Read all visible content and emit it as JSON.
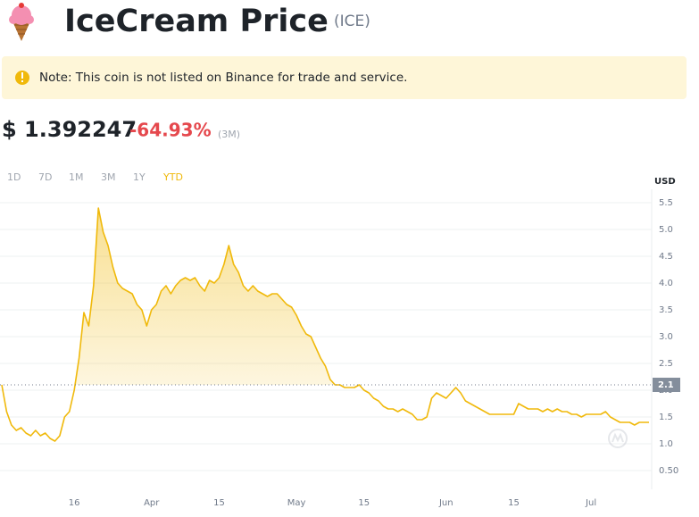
{
  "header": {
    "title": "IceCream Price",
    "symbol": "(ICE)"
  },
  "note": "Note: This coin is not listed on Binance for trade and service.",
  "price": {
    "value": "$ 1.392247",
    "change": "-64.93%",
    "period": "(3M)"
  },
  "tabs": [
    "1D",
    "7D",
    "1M",
    "3M",
    "1Y",
    "YTD"
  ],
  "active_tab": "YTD",
  "chart_data": {
    "type": "line",
    "y_axis_label": "USD",
    "series": [
      {
        "name": "ICE",
        "color": "#f0b90b",
        "values": [
          2.1,
          1.6,
          1.35,
          1.25,
          1.3,
          1.2,
          1.15,
          1.25,
          1.15,
          1.2,
          1.1,
          1.05,
          1.15,
          1.5,
          1.6,
          2.0,
          2.6,
          3.45,
          3.2,
          3.95,
          5.4,
          4.95,
          4.7,
          4.3,
          4.0,
          3.9,
          3.85,
          3.8,
          3.6,
          3.5,
          3.2,
          3.5,
          3.6,
          3.85,
          3.95,
          3.8,
          3.95,
          4.05,
          4.1,
          4.05,
          4.1,
          3.95,
          3.85,
          4.05,
          4.0,
          4.1,
          4.35,
          4.7,
          4.35,
          4.2,
          3.95,
          3.85,
          3.95,
          3.85,
          3.8,
          3.75,
          3.8,
          3.8,
          3.7,
          3.6,
          3.55,
          3.4,
          3.2,
          3.05,
          3.0,
          2.8,
          2.6,
          2.45,
          2.2,
          2.1,
          2.1,
          2.05,
          2.05,
          2.05,
          2.1,
          2.0,
          1.95,
          1.85,
          1.8,
          1.7,
          1.65,
          1.65,
          1.6,
          1.65,
          1.6,
          1.55,
          1.45,
          1.45,
          1.5,
          1.85,
          1.95,
          1.9,
          1.85,
          1.95,
          2.05,
          1.95,
          1.8,
          1.75,
          1.7,
          1.65,
          1.6,
          1.55,
          1.55,
          1.55,
          1.55,
          1.55,
          1.55,
          1.75,
          1.7,
          1.65,
          1.65,
          1.65,
          1.6,
          1.65,
          1.6,
          1.65,
          1.6,
          1.6,
          1.55,
          1.55,
          1.5,
          1.55,
          1.55,
          1.55,
          1.55,
          1.6,
          1.5,
          1.45,
          1.4,
          1.4,
          1.4,
          1.35,
          1.4,
          1.4,
          1.4
        ]
      }
    ],
    "xlim": [
      0,
      134
    ],
    "xticks": [
      {
        "value": 15,
        "label": "16"
      },
      {
        "value": 31,
        "label": "Apr"
      },
      {
        "value": 45,
        "label": "15"
      },
      {
        "value": 61,
        "label": "May"
      },
      {
        "value": 75,
        "label": "15"
      },
      {
        "value": 92,
        "label": "Jun"
      },
      {
        "value": 106,
        "label": "15"
      },
      {
        "value": 122,
        "label": "Jul"
      }
    ],
    "ylim": [
      0.15,
      5.75
    ],
    "yticks": [
      {
        "value": 0.5,
        "label": "0.50"
      },
      {
        "value": 1,
        "label": "1.0"
      },
      1.5,
      {
        "value": 2,
        "label": "2.0"
      },
      2.5,
      {
        "value": 3,
        "label": "3.0"
      },
      3.5,
      {
        "value": 4,
        "label": "4.0"
      },
      4.5,
      {
        "value": 5,
        "label": "5.0"
      },
      5.5
    ],
    "reference": {
      "value": 2.1,
      "label": "2.1"
    },
    "grid": true
  }
}
